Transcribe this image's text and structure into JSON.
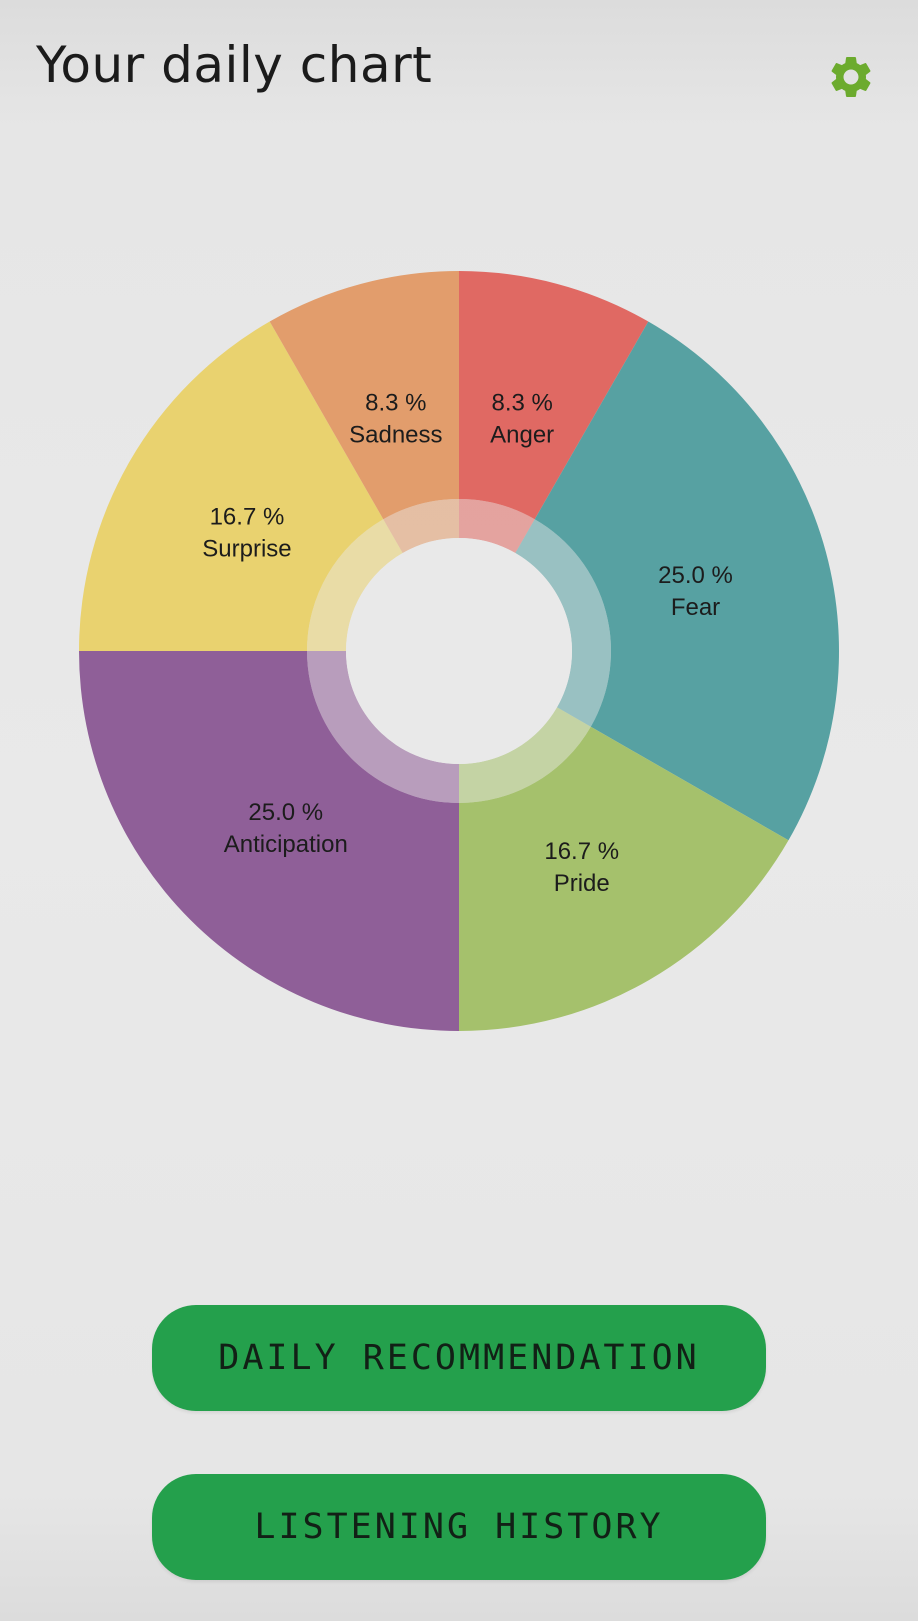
{
  "header": {
    "title": "Your daily chart",
    "settings_icon": "gear-icon"
  },
  "colors": {
    "accent": "#24a04c",
    "gear": "#6cab2e",
    "hole": "#e9e9e9"
  },
  "chart_data": {
    "type": "pie",
    "variant": "donut",
    "start_angle_deg": 0,
    "direction": "clockwise",
    "slices": [
      {
        "label": "Anger",
        "value": 8.3,
        "display": "8.3 %",
        "color": "#e06963"
      },
      {
        "label": "Fear",
        "value": 25.0,
        "display": "25.0 %",
        "color": "#57a1a2"
      },
      {
        "label": "Pride",
        "value": 16.7,
        "display": "16.7 %",
        "color": "#a5c16c"
      },
      {
        "label": "Anticipation",
        "value": 25.0,
        "display": "25.0 %",
        "color": "#8f5f98"
      },
      {
        "label": "Surprise",
        "value": 16.7,
        "display": "16.7 %",
        "color": "#e9d26f"
      },
      {
        "label": "Sadness",
        "value": 8.3,
        "display": "8.3 %",
        "color": "#e29d6c"
      }
    ]
  },
  "buttons": {
    "daily_recommendation": "DAILY RECOMMENDATION",
    "listening_history": "LISTENING HISTORY"
  }
}
